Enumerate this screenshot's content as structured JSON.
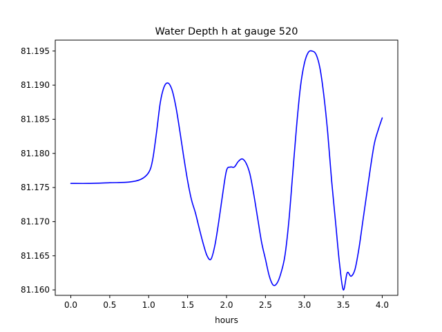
{
  "chart_data": {
    "type": "line",
    "title": "Water Depth h at gauge 520",
    "xlabel": "hours",
    "ylabel": "",
    "xlim": [
      -0.2,
      4.2
    ],
    "ylim": [
      81.1592,
      81.1966
    ],
    "x_ticks": [
      0.0,
      0.5,
      1.0,
      1.5,
      2.0,
      2.5,
      3.0,
      3.5,
      4.0
    ],
    "x_tick_labels": [
      "0.0",
      "0.5",
      "1.0",
      "1.5",
      "2.0",
      "2.5",
      "3.0",
      "3.5",
      "4.0"
    ],
    "y_ticks": [
      81.16,
      81.165,
      81.17,
      81.175,
      81.18,
      81.185,
      81.19,
      81.195
    ],
    "y_tick_labels": [
      "81.160",
      "81.165",
      "81.170",
      "81.175",
      "81.180",
      "81.185",
      "81.190",
      "81.195"
    ],
    "grid": false,
    "series": [
      {
        "color": "#0000ff",
        "x": [
          0.0,
          0.25,
          0.5,
          0.75,
          0.9,
          1.0,
          1.05,
          1.1,
          1.15,
          1.2,
          1.25,
          1.3,
          1.35,
          1.4,
          1.45,
          1.5,
          1.55,
          1.6,
          1.65,
          1.7,
          1.75,
          1.8,
          1.85,
          1.9,
          1.95,
          2.0,
          2.05,
          2.1,
          2.15,
          2.2,
          2.25,
          2.3,
          2.35,
          2.4,
          2.45,
          2.5,
          2.55,
          2.6,
          2.65,
          2.7,
          2.75,
          2.8,
          2.85,
          2.9,
          2.95,
          3.0,
          3.05,
          3.1,
          3.15,
          3.2,
          3.25,
          3.3,
          3.35,
          3.4,
          3.45,
          3.5,
          3.55,
          3.6,
          3.65,
          3.7,
          3.75,
          3.8,
          3.85,
          3.9,
          3.95,
          4.0
        ],
        "y": [
          81.1756,
          81.1756,
          81.1757,
          81.1758,
          81.1762,
          81.1772,
          81.179,
          81.183,
          81.1875,
          81.1898,
          81.1903,
          81.1893,
          81.1868,
          81.1833,
          81.1795,
          81.176,
          81.1732,
          81.1713,
          81.169,
          81.1668,
          81.165,
          81.1645,
          81.1665,
          81.17,
          81.174,
          81.1775,
          81.178,
          81.178,
          81.1788,
          81.1792,
          81.1786,
          81.177,
          81.174,
          81.1705,
          81.167,
          81.1645,
          81.162,
          81.1607,
          81.161,
          81.1625,
          81.165,
          81.17,
          81.177,
          81.184,
          81.1898,
          81.1932,
          81.1948,
          81.195,
          81.1945,
          81.1925,
          81.1885,
          81.183,
          81.176,
          81.17,
          81.164,
          81.16,
          81.1625,
          81.162,
          81.163,
          81.166,
          81.17,
          81.174,
          81.178,
          81.1815,
          81.1835,
          81.1852
        ]
      }
    ]
  }
}
